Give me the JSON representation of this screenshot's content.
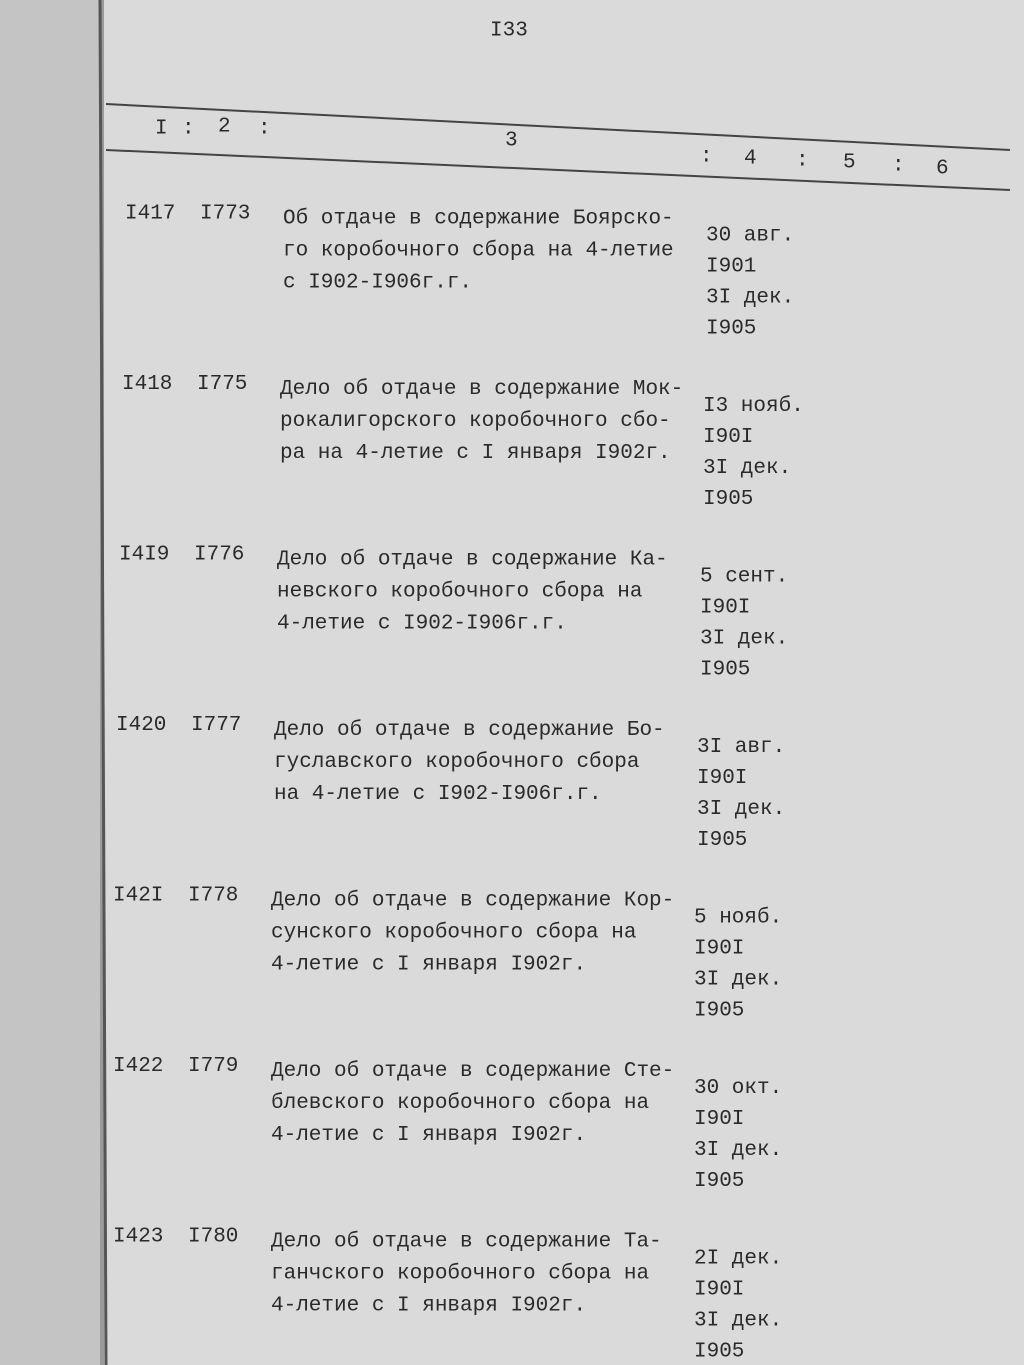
{
  "header": {
    "page_number": "I33",
    "columns": [
      "I",
      "2",
      "3",
      "4",
      "5",
      "6"
    ],
    "separator": ":"
  },
  "rows": [
    {
      "number": "I417",
      "case_number": "I773",
      "title_lines": [
        "Об отдаче в содержание Боярско-",
        "го коробочного сбора на 4-летие",
        "с I902-I906г.г."
      ],
      "date_lines": [
        "30 авг.",
        "I901",
        "3I дек.",
        "I905"
      ]
    },
    {
      "number": "I418",
      "case_number": "I775",
      "title_lines": [
        "Дело об отдаче в содержание Мок-",
        "рокалигорского коробочного сбо-",
        "ра на 4-летие с I января I902г."
      ],
      "date_lines": [
        "I3 нояб.",
        "I90I",
        "3I дек.",
        "I905"
      ]
    },
    {
      "number": "I4I9",
      "case_number": "I776",
      "title_lines": [
        "Дело об отдаче в содержание Ка-",
        "невского коробочного сбора на",
        "4-летие с I902-I906г.г."
      ],
      "date_lines": [
        "5 сент.",
        "I90I",
        "3I дек.",
        "I905"
      ]
    },
    {
      "number": "I420",
      "case_number": "I777",
      "title_lines": [
        "Дело об отдаче в содержание Бо-",
        "гуславского коробочного сбора",
        "на 4-летие с I902-I906г.г."
      ],
      "date_lines": [
        "3I авг.",
        "I90I",
        "3I дек.",
        "I905"
      ]
    },
    {
      "number": "I42I",
      "case_number": "I778",
      "title_lines": [
        "Дело об отдаче в содержание Кор-",
        "сунского коробочного сбора на",
        "4-летие с I января I902г."
      ],
      "date_lines": [
        "5 нояб.",
        "I90I",
        "3I дек.",
        "I905"
      ]
    },
    {
      "number": "I422",
      "case_number": "I779",
      "title_lines": [
        "Дело об отдаче в содержание Сте-",
        "блевского коробочного сбора на",
        "4-летие с I января I902г."
      ],
      "date_lines": [
        "30 окт.",
        "I90I",
        "3I дек.",
        "I905"
      ]
    },
    {
      "number": "I423",
      "case_number": "I780",
      "title_lines": [
        "Дело об отдаче в содержание Та-",
        "ганчского коробочного сбора на",
        "4-летие с I января I902г."
      ],
      "date_lines": [
        "2I дек.",
        "I90I",
        "3I дек.",
        "I905"
      ]
    }
  ]
}
